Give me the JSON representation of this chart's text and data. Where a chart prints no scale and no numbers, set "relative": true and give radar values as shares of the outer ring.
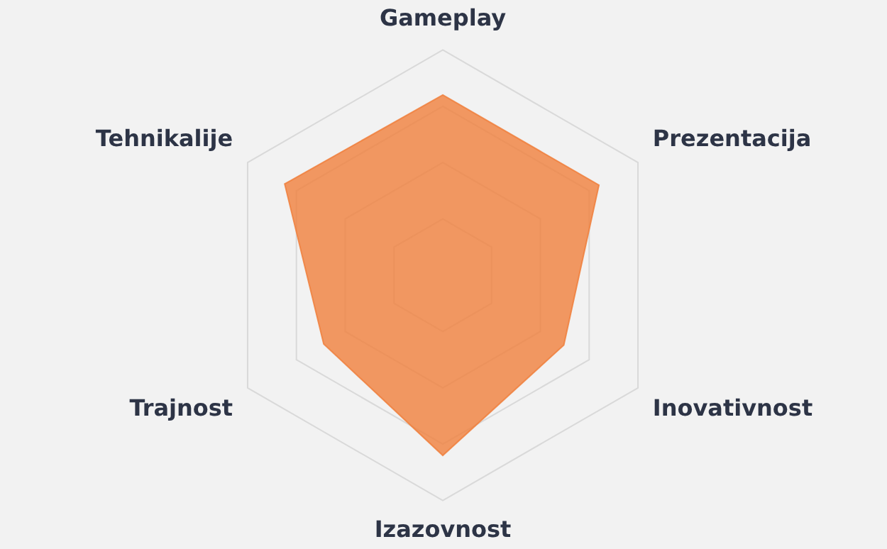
{
  "chart_data": {
    "type": "radar",
    "relative": true,
    "categories": [
      "Gameplay",
      "Prezentacija",
      "Inovativnost",
      "Izazovnost",
      "Trajnost",
      "Tehnikalije"
    ],
    "series": [
      {
        "color": "#f07f3c",
        "values": [
          0.8,
          0.8,
          0.62,
          0.8,
          0.61,
          0.81
        ]
      }
    ],
    "grid": true,
    "legend": false,
    "marker": "none"
  }
}
